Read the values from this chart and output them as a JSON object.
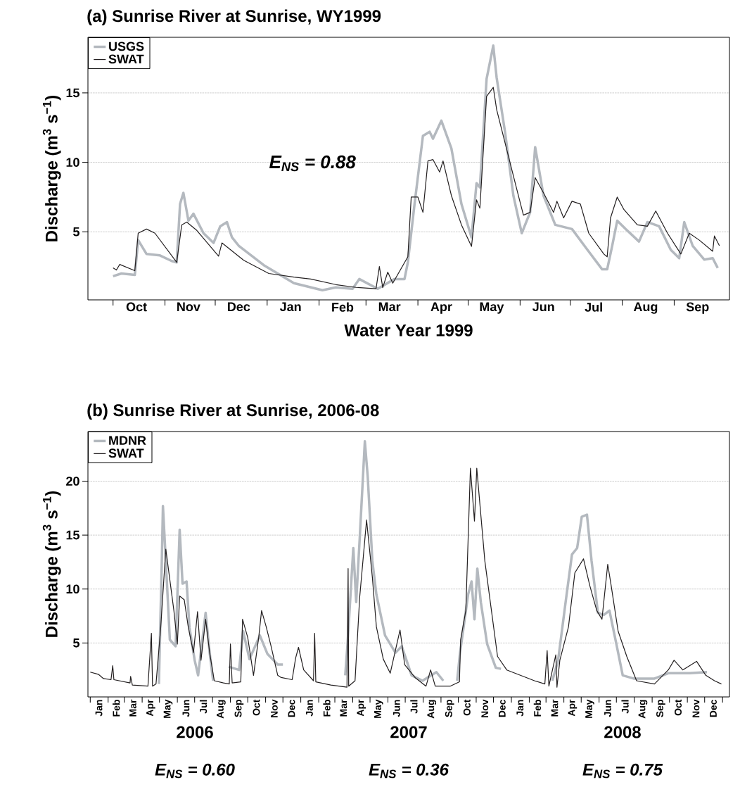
{
  "chart_data": [
    {
      "type": "line",
      "title": "(a) Sunrise River at Sunrise, WY1999",
      "xlabel": "Water Year 1999",
      "ylabel": "Discharge (m$^{3}$ s$^{−1}$)",
      "xlim": [
        "1998-09-16",
        "1999-10-04"
      ],
      "ylim": [
        0.1,
        19
      ],
      "yticks": [
        5,
        10,
        15
      ],
      "xticks": [
        {
          "value": "1998-10-01",
          "label": null
        },
        {
          "value": "1998-11-01",
          "label": null
        },
        {
          "value": "1998-12-01",
          "label": null
        },
        {
          "value": "1999-01-01",
          "label": null
        },
        {
          "value": "1999-02-01",
          "label": null
        },
        {
          "value": "1999-03-01",
          "label": null
        },
        {
          "value": "1999-04-01",
          "label": null
        },
        {
          "value": "1999-05-01",
          "label": null
        },
        {
          "value": "1999-06-01",
          "label": null
        },
        {
          "value": "1999-07-01",
          "label": null
        },
        {
          "value": "1999-08-01",
          "label": null
        },
        {
          "value": "1999-09-01",
          "label": null
        },
        {
          "value": "1998-10-15",
          "label": "Oct"
        },
        {
          "value": "1998-11-15",
          "label": "Nov"
        },
        {
          "value": "1998-12-15",
          "label": "Dec"
        },
        {
          "value": "1999-01-15",
          "label": "Jan"
        },
        {
          "value": "1999-02-15",
          "label": "Feb"
        },
        {
          "value": "1999-03-15",
          "label": "Mar"
        },
        {
          "value": "1999-04-15",
          "label": "Apr"
        },
        {
          "value": "1999-05-15",
          "label": "May"
        },
        {
          "value": "1999-06-15",
          "label": "Jun"
        },
        {
          "value": "1999-07-15",
          "label": "Jul"
        },
        {
          "value": "1999-08-15",
          "label": "Aug"
        },
        {
          "value": "1999-09-15",
          "label": "Sep"
        }
      ],
      "grid": "y",
      "legend": "top left",
      "annotations": [
        "*E*$_{NS}$ = 0.88"
      ],
      "series": [
        {
          "name": "USGS",
          "color": "#b4b9bf",
          "x": [
            "1998-10-01",
            "1998-10-06",
            "1998-10-14",
            "1998-10-16",
            "1998-10-21",
            "1998-10-29",
            "1998-11-05",
            "1998-11-08",
            "1998-11-10",
            "1998-11-12",
            "1998-11-15",
            "1998-11-18",
            "1998-11-24",
            "1998-11-30",
            "1998-12-04",
            "1998-12-08",
            "1998-12-11",
            "1998-12-15",
            "1998-12-30",
            "1999-01-17",
            "1999-02-03",
            "1999-02-11",
            "1999-02-21",
            "1999-02-25",
            "1999-03-08",
            "1999-03-18",
            "1999-03-24",
            "1999-03-26",
            "1999-03-30",
            "1999-04-04",
            "1999-04-08",
            "1999-04-10",
            "1999-04-15",
            "1999-04-21",
            "1999-04-27",
            "1999-05-03",
            "1999-05-06",
            "1999-05-08",
            "1999-05-12",
            "1999-05-16",
            "1999-05-18",
            "1999-05-23",
            "1999-05-28",
            "1999-06-02",
            "1999-06-07",
            "1999-06-10",
            "1999-06-15",
            "1999-06-22",
            "1999-07-02",
            "1999-07-10",
            "1999-07-20",
            "1999-07-23",
            "1999-07-26",
            "1999-07-29",
            "1999-08-03",
            "1999-08-11",
            "1999-08-16",
            "1999-08-23",
            "1999-08-30",
            "1999-09-04",
            "1999-09-07",
            "1999-09-12",
            "1999-09-19",
            "1999-09-24",
            "1999-09-27"
          ],
          "values": [
            1.8,
            2.0,
            1.9,
            4.4,
            3.4,
            3.3,
            2.9,
            2.8,
            7.0,
            7.8,
            5.8,
            6.3,
            4.9,
            4.2,
            5.4,
            5.7,
            4.6,
            4.0,
            2.6,
            1.3,
            0.8,
            1.0,
            0.9,
            1.6,
            0.9,
            1.6,
            1.6,
            2.8,
            7.0,
            11.9,
            12.2,
            11.7,
            13.0,
            11.0,
            7.0,
            4.6,
            8.5,
            8.2,
            16.0,
            18.4,
            16.1,
            12.2,
            7.6,
            4.9,
            6.4,
            11.1,
            7.6,
            5.5,
            5.2,
            3.9,
            2.3,
            2.3,
            4.0,
            5.8,
            5.2,
            4.3,
            5.7,
            5.4,
            3.7,
            3.1,
            5.7,
            4.0,
            3.0,
            3.1,
            2.4
          ]
        },
        {
          "name": "SWAT",
          "color": "#231f20",
          "x": [
            "1998-10-01",
            "1998-10-03",
            "1998-10-05",
            "1998-10-14",
            "1998-10-16",
            "1998-10-21",
            "1998-10-26",
            "1998-11-08",
            "1998-11-11",
            "1998-11-14",
            "1998-11-20",
            "1998-12-03",
            "1998-12-05",
            "1998-12-18",
            "1999-01-02",
            "1999-01-17",
            "1999-01-27",
            "1999-02-11",
            "1999-02-23",
            "1999-03-07",
            "1999-03-09",
            "1999-03-11",
            "1999-03-14",
            "1999-03-17",
            "1999-03-26",
            "1999-03-28",
            "1999-04-01",
            "1999-04-04",
            "1999-04-07",
            "1999-04-10",
            "1999-04-14",
            "1999-04-16",
            "1999-04-21",
            "1999-04-27",
            "1999-05-03",
            "1999-05-06",
            "1999-05-08",
            "1999-05-12",
            "1999-05-16",
            "1999-05-18",
            "1999-05-31",
            "1999-06-03",
            "1999-06-07",
            "1999-06-10",
            "1999-06-15",
            "1999-06-21",
            "1999-06-23",
            "1999-06-27",
            "1999-07-02",
            "1999-07-07",
            "1999-07-12",
            "1999-07-21",
            "1999-07-23",
            "1999-07-25",
            "1999-07-29",
            "1999-08-02",
            "1999-08-10",
            "1999-08-16",
            "1999-08-21",
            "1999-08-28",
            "1999-09-05",
            "1999-09-10",
            "1999-09-16",
            "1999-09-24",
            "1999-09-25",
            "1999-09-28"
          ],
          "values": [
            2.4,
            2.25,
            2.65,
            2.2,
            4.9,
            5.2,
            4.9,
            2.8,
            5.5,
            5.7,
            5.1,
            3.25,
            4.2,
            2.95,
            2.0,
            1.74,
            1.6,
            1.2,
            1.0,
            0.9,
            2.5,
            0.98,
            2.1,
            1.3,
            3.2,
            7.5,
            7.5,
            6.4,
            10.1,
            10.2,
            9.3,
            10.1,
            7.6,
            5.5,
            3.95,
            7.3,
            6.7,
            14.75,
            15.4,
            13.8,
            7.6,
            6.2,
            6.4,
            8.9,
            7.8,
            6.4,
            7.2,
            6.0,
            7.2,
            7.0,
            4.9,
            3.4,
            3.2,
            6.0,
            7.5,
            6.6,
            5.5,
            5.4,
            6.5,
            4.9,
            3.4,
            4.9,
            4.4,
            3.6,
            4.7,
            4.0
          ]
        }
      ]
    },
    {
      "type": "line",
      "title": "(b) Sunrise River at Sunrise, 2006-08",
      "ylabel": "Discharge (m$^{3}$ s$^{−1}$)",
      "xlim": [
        "2005-12-28",
        "2009-01-13"
      ],
      "ylim": [
        0,
        24.6
      ],
      "yticks": [
        5,
        10,
        15,
        20
      ],
      "xticks": [
        {
          "value": "2006-01-01",
          "label": null
        },
        {
          "value": "2006-02-01",
          "label": null
        },
        {
          "value": "2006-03-01",
          "label": null
        },
        {
          "value": "2006-04-01",
          "label": null
        },
        {
          "value": "2006-05-01",
          "label": null
        },
        {
          "value": "2006-06-01",
          "label": null
        },
        {
          "value": "2006-07-01",
          "label": null
        },
        {
          "value": "2006-08-01",
          "label": null
        },
        {
          "value": "2006-09-01",
          "label": null
        },
        {
          "value": "2006-10-01",
          "label": null
        },
        {
          "value": "2006-11-01",
          "label": null
        },
        {
          "value": "2006-12-01",
          "label": null
        },
        {
          "value": "2007-01-01",
          "label": null
        },
        {
          "value": "2007-02-01",
          "label": null
        },
        {
          "value": "2007-03-01",
          "label": null
        },
        {
          "value": "2007-04-01",
          "label": null
        },
        {
          "value": "2007-05-01",
          "label": null
        },
        {
          "value": "2007-06-01",
          "label": null
        },
        {
          "value": "2007-07-01",
          "label": null
        },
        {
          "value": "2007-08-01",
          "label": null
        },
        {
          "value": "2007-09-01",
          "label": null
        },
        {
          "value": "2007-10-01",
          "label": null
        },
        {
          "value": "2007-11-01",
          "label": null
        },
        {
          "value": "2007-12-01",
          "label": null
        },
        {
          "value": "2008-01-01",
          "label": null
        },
        {
          "value": "2008-02-01",
          "label": null
        },
        {
          "value": "2008-03-01",
          "label": null
        },
        {
          "value": "2008-04-01",
          "label": null
        },
        {
          "value": "2008-05-01",
          "label": null
        },
        {
          "value": "2008-06-01",
          "label": null
        },
        {
          "value": "2008-07-01",
          "label": null
        },
        {
          "value": "2008-08-01",
          "label": null
        },
        {
          "value": "2008-09-01",
          "label": null
        },
        {
          "value": "2008-10-01",
          "label": null
        },
        {
          "value": "2008-11-01",
          "label": null
        },
        {
          "value": "2008-12-01",
          "label": null
        },
        {
          "value": "2009-01-01",
          "label": null
        },
        {
          "value": "2006-01-16",
          "label": "Jan"
        },
        {
          "value": "2006-02-15",
          "label": "Feb"
        },
        {
          "value": "2006-03-16",
          "label": "Mar"
        },
        {
          "value": "2006-04-16",
          "label": "Apr"
        },
        {
          "value": "2006-05-16",
          "label": "May"
        },
        {
          "value": "2006-06-16",
          "label": "Jun"
        },
        {
          "value": "2006-07-16",
          "label": "Jul"
        },
        {
          "value": "2006-08-16",
          "label": "Aug"
        },
        {
          "value": "2006-09-16",
          "label": "Sep"
        },
        {
          "value": "2006-10-16",
          "label": "Oct"
        },
        {
          "value": "2006-11-16",
          "label": "Nov"
        },
        {
          "value": "2006-12-16",
          "label": "Dec"
        },
        {
          "value": "2007-01-16",
          "label": "Jan"
        },
        {
          "value": "2007-02-15",
          "label": "Feb"
        },
        {
          "value": "2007-03-16",
          "label": "Mar"
        },
        {
          "value": "2007-04-16",
          "label": "Apr"
        },
        {
          "value": "2007-05-16",
          "label": "May"
        },
        {
          "value": "2007-06-16",
          "label": "Jun"
        },
        {
          "value": "2007-07-16",
          "label": "Jul"
        },
        {
          "value": "2007-08-16",
          "label": "Aug"
        },
        {
          "value": "2007-09-16",
          "label": "Sep"
        },
        {
          "value": "2007-10-16",
          "label": "Oct"
        },
        {
          "value": "2007-11-16",
          "label": "Nov"
        },
        {
          "value": "2007-12-16",
          "label": "Dec"
        },
        {
          "value": "2008-01-16",
          "label": "Jan"
        },
        {
          "value": "2008-02-15",
          "label": "Feb"
        },
        {
          "value": "2008-03-16",
          "label": "Mar"
        },
        {
          "value": "2008-04-16",
          "label": "Apr"
        },
        {
          "value": "2008-05-16",
          "label": "May"
        },
        {
          "value": "2008-06-16",
          "label": "Jun"
        },
        {
          "value": "2008-07-16",
          "label": "Jul"
        },
        {
          "value": "2008-08-16",
          "label": "Aug"
        },
        {
          "value": "2008-09-16",
          "label": "Sep"
        },
        {
          "value": "2008-10-16",
          "label": "Oct"
        },
        {
          "value": "2008-11-16",
          "label": "Nov"
        },
        {
          "value": "2008-12-16",
          "label": "Dec"
        }
      ],
      "grid": "y",
      "legend": "top left",
      "annotations": [
        "2006",
        "2007",
        "2008",
        "*E*$_{NS}$ = 0.60",
        "*E*$_{NS}$ = 0.36",
        "*E*$_{NS}$ = 0.75"
      ],
      "series": [
        {
          "name": "MDNR",
          "color": "#b4b9bf",
          "x": [
            "2006-04-30",
            "2006-05-05",
            "2006-05-07",
            "2006-05-12",
            "2006-05-19",
            "2006-05-29",
            "2006-06-05",
            "2006-06-10",
            "2006-06-17",
            "2006-06-22",
            "2006-07-01",
            "2006-07-07",
            "2006-07-20",
            "2006-07-27",
            "2006-08-02",
            "2006-08-10",
            "2006-08-29",
            "2006-09-16",
            "2006-09-23",
            "2006-10-04",
            "2006-10-22",
            "2006-11-04",
            "2006-11-22",
            "2006-12-01",
            "2007-01-15",
            "2007-03-19",
            "2007-03-23",
            "2007-04-02",
            "2007-04-07",
            "2007-04-13",
            "2007-04-22",
            "2007-04-27",
            "2007-05-05",
            "2007-05-12",
            "2007-05-27",
            "2007-06-14",
            "2007-06-25",
            "2007-07-12",
            "2007-07-31",
            "2007-08-24",
            "2007-09-05",
            "2007-09-15",
            "2007-09-29",
            "2007-10-04",
            "2007-10-18",
            "2007-10-24",
            "2007-10-29",
            "2007-11-03",
            "2007-11-09",
            "2007-11-20",
            "2007-12-05",
            "2007-12-14",
            "2008-01-15",
            "2008-03-12",
            "2008-03-22",
            "2008-04-05",
            "2008-04-15",
            "2008-04-24",
            "2008-05-02",
            "2008-05-11",
            "2008-05-19",
            "2008-05-30",
            "2008-06-09",
            "2008-06-19",
            "2008-07-01",
            "2008-07-12",
            "2008-07-31",
            "2008-09-05",
            "2008-09-29",
            "2008-11-05",
            "2008-12-05"
          ],
          "values": [
            1.2,
            12.4,
            17.7,
            12.6,
            5.3,
            4.7,
            15.5,
            10.5,
            10.7,
            6.45,
            3.4,
            2.0,
            7.8,
            4.1,
            1.5,
            null,
            2.8,
            2.5,
            6.1,
            3.5,
            5.7,
            4.0,
            3.0,
            3.0,
            null,
            2.0,
            4.9,
            13.8,
            8.8,
            14.6,
            23.7,
            20.4,
            12.6,
            9.5,
            5.7,
            4.1,
            4.7,
            2.0,
            1.5,
            2.3,
            1.5,
            null,
            1.5,
            4.1,
            9.5,
            10.7,
            7.2,
            11.9,
            8.8,
            4.9,
            2.7,
            2.6,
            null,
            1.5,
            3.4,
            9.2,
            13.2,
            13.8,
            16.7,
            16.9,
            12.6,
            7.8,
            7.6,
            8.0,
            4.9,
            2.0,
            1.7,
            1.7,
            2.2,
            2.2,
            2.3
          ]
        },
        {
          "name": "SWAT",
          "color": "#231f20",
          "x": [
            "2006-01-01",
            "2006-01-15",
            "2006-01-24",
            "2006-02-06",
            "2006-02-09",
            "2006-02-11",
            "2006-03-11",
            "2006-03-12",
            "2006-03-15",
            "2006-04-11",
            "2006-04-17",
            "2006-04-19",
            "2006-04-25",
            "2006-05-03",
            "2006-05-12",
            "2006-05-26",
            "2006-06-01",
            "2006-06-05",
            "2006-06-13",
            "2006-06-20",
            "2006-06-29",
            "2006-07-06",
            "2006-07-12",
            "2006-07-20",
            "2006-07-27",
            "2006-08-04",
            "2006-08-20",
            "2006-08-30",
            "2006-09-01",
            "2006-09-04",
            "2006-09-19",
            "2006-09-22",
            "2006-10-01",
            "2006-10-11",
            "2006-10-20",
            "2006-10-25",
            "2006-11-02",
            "2006-11-10",
            "2006-11-22",
            "2006-11-28",
            "2006-12-17",
            "2006-12-23",
            "2006-12-28",
            "2007-01-06",
            "2007-01-23",
            "2007-01-25",
            "2007-01-27",
            "2007-02-22",
            "2007-03-22",
            "2007-03-24",
            "2007-03-25",
            "2007-04-05",
            "2007-04-13",
            "2007-04-25",
            "2007-05-05",
            "2007-05-12",
            "2007-05-24",
            "2007-06-05",
            "2007-06-22",
            "2007-06-30",
            "2007-07-18",
            "2007-08-06",
            "2007-08-14",
            "2007-08-22",
            "2007-09-17",
            "2007-10-03",
            "2007-10-05",
            "2007-10-14",
            "2007-10-22",
            "2007-10-29",
            "2007-11-02",
            "2007-11-16",
            "2007-12-08",
            "2007-12-24",
            "2008-02-10",
            "2008-02-28",
            "2008-03-03",
            "2008-03-06",
            "2008-03-18",
            "2008-03-20",
            "2008-03-25",
            "2008-04-09",
            "2008-04-20",
            "2008-05-05",
            "2008-05-16",
            "2008-05-28",
            "2008-06-06",
            "2008-06-16",
            "2008-06-22",
            "2008-07-04",
            "2008-07-19",
            "2008-08-05",
            "2008-09-05",
            "2008-09-29",
            "2008-10-09",
            "2008-10-24",
            "2008-11-17",
            "2008-12-03",
            "2008-12-18",
            "2008-12-30"
          ],
          "values": [
            2.3,
            2.1,
            1.7,
            1.6,
            2.9,
            1.6,
            1.3,
            1.9,
            1.1,
            1.0,
            5.9,
            1.0,
            1.2,
            6.3,
            13.7,
            8.0,
            4.9,
            9.35,
            9.0,
            6.45,
            4.1,
            7.9,
            3.4,
            7.2,
            4.1,
            1.5,
            1.3,
            1.2,
            4.9,
            1.3,
            1.4,
            7.2,
            5.5,
            2.0,
            5.5,
            8.0,
            6.5,
            4.8,
            2.0,
            1.8,
            1.6,
            3.6,
            4.6,
            2.5,
            1.5,
            5.9,
            1.4,
            1.1,
            0.9,
            11.9,
            1.0,
            1.5,
            9.2,
            16.4,
            11.1,
            6.5,
            3.5,
            2.2,
            6.2,
            3.0,
            1.8,
            1.0,
            2.5,
            1.0,
            1.0,
            1.4,
            5.3,
            8.0,
            21.2,
            16.3,
            21.2,
            12.6,
            3.75,
            2.5,
            1.5,
            1.2,
            4.3,
            1.0,
            3.9,
            0.9,
            3.4,
            6.5,
            11.5,
            12.8,
            10.3,
            8.0,
            7.2,
            12.3,
            10.3,
            6.1,
            3.75,
            1.5,
            1.2,
            2.5,
            3.4,
            2.5,
            3.3,
            2.0,
            1.5,
            1.2
          ]
        }
      ]
    }
  ]
}
